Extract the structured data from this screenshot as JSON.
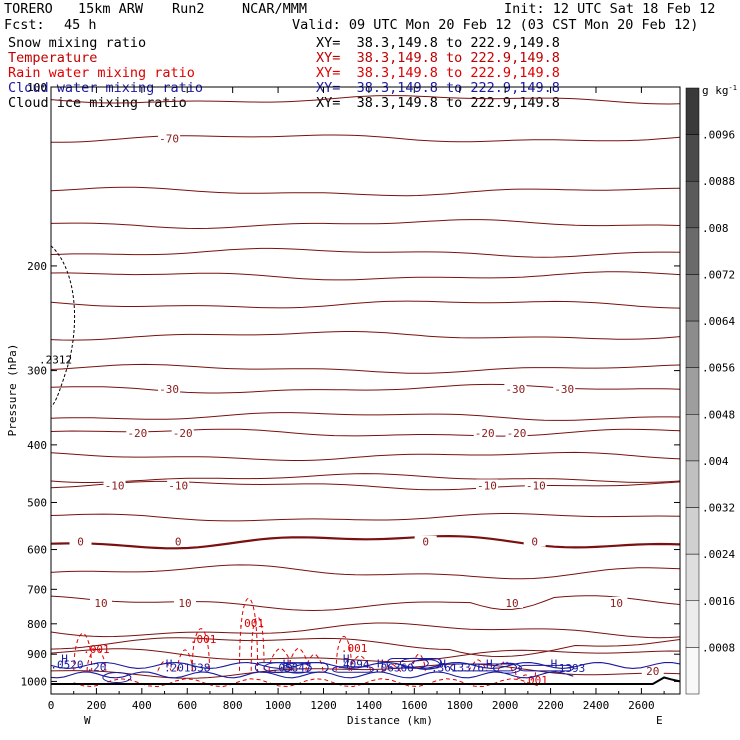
{
  "header": {
    "model": "TORERO",
    "grid": "15km ARW",
    "run": "Run2",
    "org": "NCAR/MMM",
    "init": "Init: 12 UTC Sat 18 Feb 12",
    "fcst_label": "Fcst:",
    "fcst_value": "45 h",
    "valid": "Valid: 09 UTC Mon 20 Feb 12 (03 CST Mon 20 Feb 12)"
  },
  "fields": [
    {
      "name": "Snow mixing ratio",
      "color": "#000000",
      "xy": "XY=  38.3,149.8 to 222.9,149.8"
    },
    {
      "name": "Temperature",
      "color": "#c00000",
      "xy": "XY=  38.3,149.8 to 222.9,149.8"
    },
    {
      "name": "Rain water mixing ratio",
      "color": "#e00000",
      "xy": "XY=  38.3,149.8 to 222.9,149.8"
    },
    {
      "name": "Cloud water mixing ratio",
      "color": "#1a1aa0",
      "xy": "XY=  38.3,149.8 to 222.9,149.8"
    },
    {
      "name": "Cloud ice mixing ratio",
      "color": "#000000",
      "xy": "XY=  38.3,149.8 to 222.9,149.8"
    }
  ],
  "chart_data": {
    "type": "cross-section",
    "xlabel": "Distance (km)",
    "ylabel": "Pressure (hPa)",
    "xlim": [
      0,
      2770
    ],
    "ylim": [
      1050,
      100
    ],
    "y_scale": "log",
    "x_ticks": [
      "0",
      "200",
      "400",
      "600",
      "800",
      "1000",
      "1200",
      "1400",
      "1600",
      "1800",
      "2000",
      "2200",
      "2400",
      "2600"
    ],
    "y_ticks": [
      "100",
      "200",
      "300",
      "400",
      "500",
      "600",
      "700",
      "800",
      "900",
      "1000"
    ],
    "endpoint_left": "W",
    "endpoint_right": "E",
    "temperature_color": "#7a1010",
    "temperature_label_color": "#8b1a1a",
    "temperature_levels": [
      {
        "p": 105
      },
      {
        "p": 122,
        "labels": [
          {
            "x": 520,
            "t": "-70"
          }
        ]
      },
      {
        "p": 150
      },
      {
        "p": 170
      },
      {
        "p": 190
      },
      {
        "p": 208
      },
      {
        "p": 232
      },
      {
        "p": 262
      },
      {
        "p": 298
      },
      {
        "p": 322,
        "labels": [
          {
            "x": 520,
            "t": "-30"
          },
          {
            "x": 2045,
            "t": "-30"
          },
          {
            "x": 2260,
            "t": "-30"
          }
        ]
      },
      {
        "p": 358
      },
      {
        "p": 382,
        "labels": [
          {
            "x": 380,
            "t": "-20"
          },
          {
            "x": 580,
            "t": "-20"
          },
          {
            "x": 1910,
            "t": "-20"
          },
          {
            "x": 2050,
            "t": "-20"
          }
        ]
      },
      {
        "p": 418
      },
      {
        "p": 455
      },
      {
        "p": 468,
        "labels": [
          {
            "x": 280,
            "t": "-10"
          },
          {
            "x": 560,
            "t": "-10"
          },
          {
            "x": 1920,
            "t": "-10"
          },
          {
            "x": 2135,
            "t": "-10"
          }
        ]
      },
      {
        "p": 530
      },
      {
        "p": 582,
        "bold": true,
        "labels": [
          {
            "x": 130,
            "t": "0"
          },
          {
            "x": 560,
            "t": "0"
          },
          {
            "x": 1650,
            "t": "0"
          },
          {
            "x": 2130,
            "t": "0"
          }
        ]
      },
      {
        "p": 655
      },
      {
        "p": 738,
        "labels": [
          {
            "x": 220,
            "t": "10"
          },
          {
            "x": 590,
            "t": "10"
          },
          {
            "x": 2030,
            "t": "10"
          },
          {
            "x": 2490,
            "t": "10"
          }
        ]
      },
      {
        "p": 820
      },
      {
        "p": 862
      },
      {
        "p": 905
      },
      {
        "p": 960,
        "labels": [
          {
            "x": 2650,
            "t": "20"
          }
        ]
      }
    ],
    "rain_labels": [
      {
        "x": 200,
        "p": 895,
        "t": ".001"
      },
      {
        "x": 670,
        "p": 862,
        "t": ".001"
      },
      {
        "x": 880,
        "p": 810,
        "t": ".001"
      },
      {
        "x": 1335,
        "p": 893,
        "t": ".001"
      },
      {
        "x": 2130,
        "p": 1010,
        "t": ".001"
      }
    ],
    "rain_color": "#e00000",
    "cloud_water_color": "#1a1aa0",
    "cloud_highs": [
      {
        "x": 60,
        "p": 930,
        "t": "H"
      },
      {
        "x": 520,
        "p": 948,
        "t": "H"
      },
      {
        "x": 1035,
        "p": 948,
        "t": "H"
      },
      {
        "x": 1300,
        "p": 930,
        "t": "H"
      },
      {
        "x": 1450,
        "p": 948,
        "t": "H"
      },
      {
        "x": 1725,
        "p": 948,
        "t": "H"
      },
      {
        "x": 1930,
        "p": 948,
        "t": "H"
      },
      {
        "x": 2215,
        "p": 948,
        "t": "H"
      }
    ],
    "cloud_values": [
      {
        "x": 70,
        "p": 952,
        "t": ".0520"
      },
      {
        "x": 200,
        "p": 960,
        "t": ".20"
      },
      {
        "x": 600,
        "p": 962,
        "t": ".201538"
      },
      {
        "x": 1060,
        "p": 962,
        "t": ".05847"
      },
      {
        "x": 1330,
        "p": 950,
        "t": ".4094"
      },
      {
        "x": 1510,
        "p": 962,
        "t": ".06360"
      },
      {
        "x": 1790,
        "p": 962,
        "t": ".3613376"
      },
      {
        "x": 2280,
        "p": 964,
        "t": ".1393"
      }
    ],
    "ice_labels": [
      {
        "x": 20,
        "p": 292,
        "t": ".2312"
      }
    ],
    "colorbar": {
      "unit": "g kg",
      "unit_exp": "-1",
      "labels": [
        ".0096",
        ".0088",
        ".008",
        ".0072",
        ".0064",
        ".0056",
        ".0048",
        ".004",
        ".0032",
        ".0024",
        ".0016",
        ".0008"
      ],
      "colors": [
        "#3a3a3a",
        "#4a4a4a",
        "#5a5a5a",
        "#6a6a6a",
        "#7a7a7a",
        "#8c8c8c",
        "#9e9e9e",
        "#afafaf",
        "#c0c0c0",
        "#d0d0d0",
        "#dedede",
        "#ececec",
        "#f8f8f8"
      ]
    }
  }
}
